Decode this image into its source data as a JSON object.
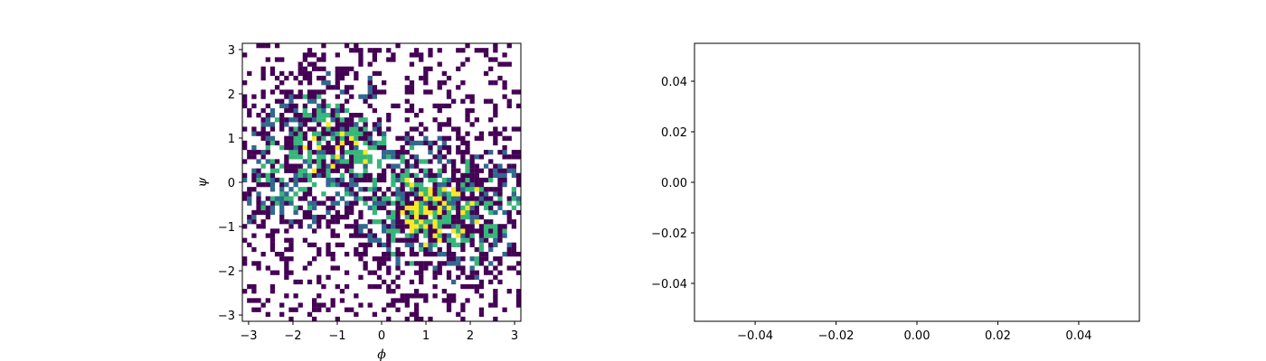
{
  "chart_data": [
    {
      "type": "heatmap",
      "title": "",
      "xlabel": "ϕ",
      "ylabel": "ψ",
      "xlim": [
        -3.14159,
        3.14159
      ],
      "ylim": [
        -3.14159,
        3.14159
      ],
      "bins": 60,
      "colormap": "viridis",
      "empty_bins_color": "#ffffff",
      "x_ticks": [
        -3,
        -2,
        -1,
        0,
        1,
        2,
        3
      ],
      "y_ticks": [
        -3,
        -2,
        -1,
        0,
        1,
        2,
        3
      ],
      "x_tick_labels": [
        "−3",
        "−2",
        "−1",
        "0",
        "1",
        "2",
        "3"
      ],
      "y_tick_labels": [
        "−3",
        "−2",
        "−1",
        "0",
        "1",
        "2",
        "3"
      ],
      "density_hotspots": [
        {
          "phi": -1.0,
          "psi": 1.0,
          "strength": 0.8
        },
        {
          "phi": 1.0,
          "psi": -0.6,
          "strength": 1.0
        },
        {
          "phi": -2.4,
          "psi": 0.0,
          "strength": 0.5
        },
        {
          "phi": 2.6,
          "psi": -0.8,
          "strength": 0.5
        }
      ],
      "grid": false
    },
    {
      "type": "scatter",
      "title": "",
      "xlabel": "",
      "ylabel": "",
      "series": [],
      "xlim": [
        -0.055,
        0.055
      ],
      "ylim": [
        -0.055,
        0.055
      ],
      "x_ticks": [
        -0.04,
        -0.02,
        0.0,
        0.02,
        0.04
      ],
      "y_ticks": [
        -0.04,
        -0.02,
        0.0,
        0.02,
        0.04
      ],
      "x_tick_labels": [
        "−0.04",
        "−0.02",
        "0.00",
        "0.02",
        "0.04"
      ],
      "y_tick_labels": [
        "−0.04",
        "−0.02",
        "0.00",
        "0.02",
        "0.04"
      ],
      "grid": false
    }
  ]
}
